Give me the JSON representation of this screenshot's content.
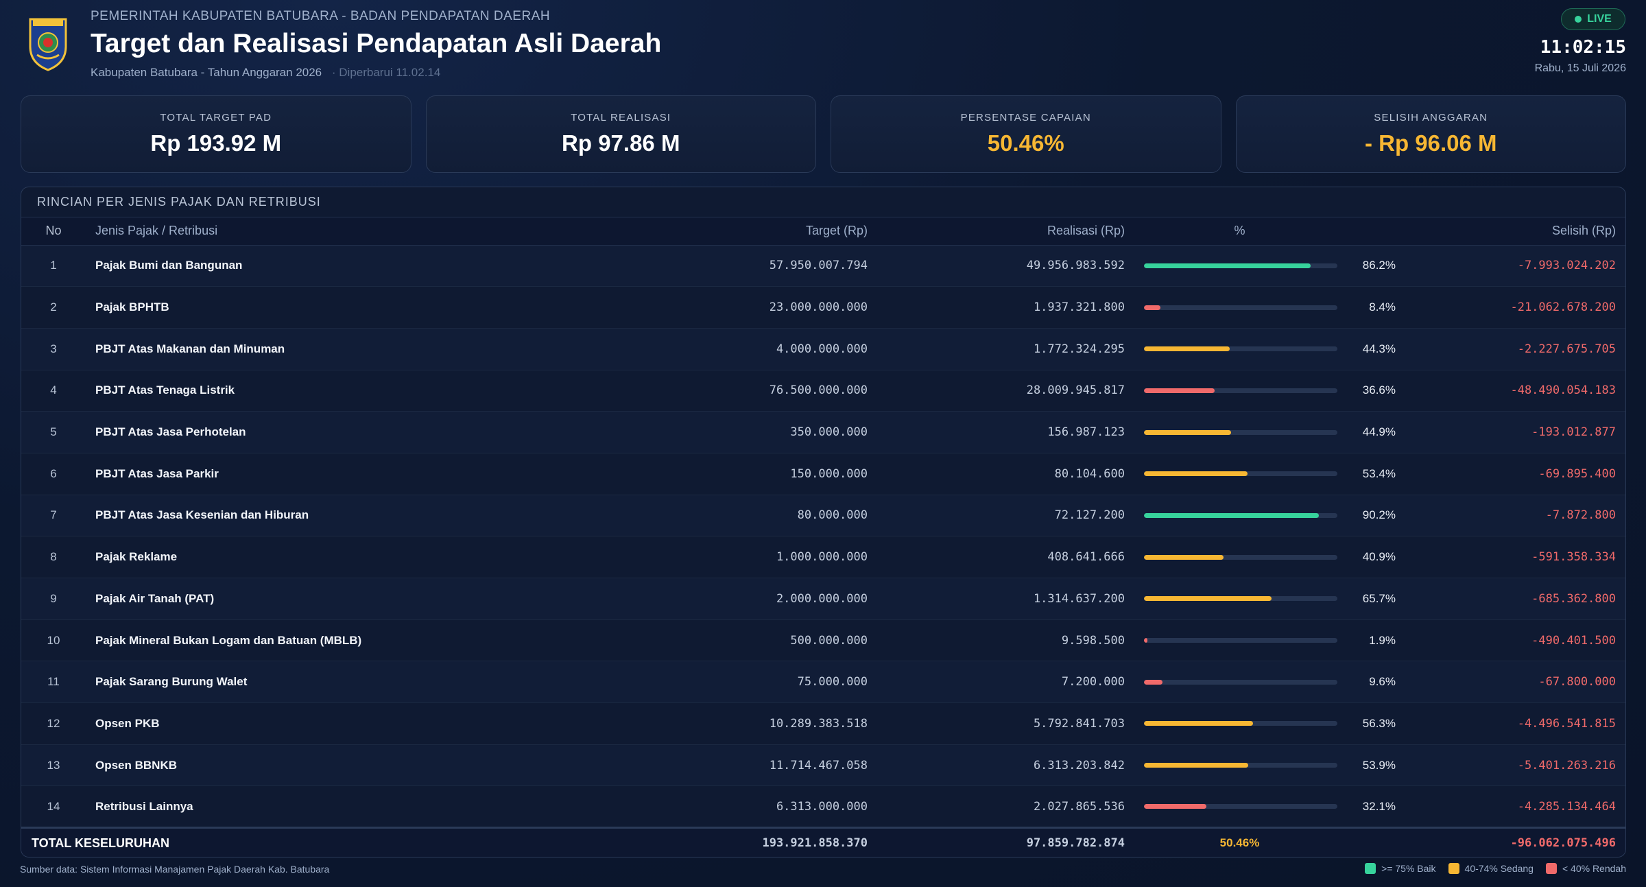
{
  "header": {
    "org": "PEMERINTAH KABUPATEN BATUBARA - BADAN PENDAPATAN DAERAH",
    "title": "Target dan Realisasi Pendapatan Asli Daerah",
    "subtitle": "Kabupaten Batubara - Tahun Anggaran 2026",
    "updated": "· Diperbarui 11.02.14",
    "live": "LIVE",
    "clock": "11:02:15",
    "date": "Rabu, 15 Juli 2026",
    "logo_icon": "regency-crest-icon"
  },
  "cards": [
    {
      "label": "TOTAL TARGET PAD",
      "value": "Rp 193.92 M"
    },
    {
      "label": "TOTAL REALISASI",
      "value": "Rp 97.86 M"
    },
    {
      "label": "PERSENTASE CAPAIAN",
      "value": "50.46%"
    },
    {
      "label": "SELISIH ANGGARAN",
      "value": "- Rp 96.06 M"
    }
  ],
  "table": {
    "title": "RINCIAN PER JENIS PAJAK DAN RETRIBUSI",
    "headers": {
      "no": "No",
      "name": "Jenis Pajak / Retribusi",
      "target": "Target (Rp)",
      "real": "Realisasi (Rp)",
      "pct": "%",
      "sel": "Selisih (Rp)"
    },
    "rows": [
      {
        "no": "1",
        "name": "Pajak Bumi dan Bangunan",
        "target": "57.950.007.794",
        "real": "49.956.983.592",
        "pct": 86.2,
        "pct_label": "86.2%",
        "sel": "-7.993.024.202"
      },
      {
        "no": "2",
        "name": "Pajak BPHTB",
        "target": "23.000.000.000",
        "real": "1.937.321.800",
        "pct": 8.4,
        "pct_label": "8.4%",
        "sel": "-21.062.678.200"
      },
      {
        "no": "3",
        "name": "PBJT Atas Makanan dan Minuman",
        "target": "4.000.000.000",
        "real": "1.772.324.295",
        "pct": 44.3,
        "pct_label": "44.3%",
        "sel": "-2.227.675.705"
      },
      {
        "no": "4",
        "name": "PBJT Atas Tenaga Listrik",
        "target": "76.500.000.000",
        "real": "28.009.945.817",
        "pct": 36.6,
        "pct_label": "36.6%",
        "sel": "-48.490.054.183"
      },
      {
        "no": "5",
        "name": "PBJT Atas Jasa Perhotelan",
        "target": "350.000.000",
        "real": "156.987.123",
        "pct": 44.9,
        "pct_label": "44.9%",
        "sel": "-193.012.877"
      },
      {
        "no": "6",
        "name": "PBJT Atas Jasa Parkir",
        "target": "150.000.000",
        "real": "80.104.600",
        "pct": 53.4,
        "pct_label": "53.4%",
        "sel": "-69.895.400"
      },
      {
        "no": "7",
        "name": "PBJT Atas Jasa Kesenian dan Hiburan",
        "target": "80.000.000",
        "real": "72.127.200",
        "pct": 90.2,
        "pct_label": "90.2%",
        "sel": "-7.872.800"
      },
      {
        "no": "8",
        "name": "Pajak Reklame",
        "target": "1.000.000.000",
        "real": "408.641.666",
        "pct": 40.9,
        "pct_label": "40.9%",
        "sel": "-591.358.334"
      },
      {
        "no": "9",
        "name": "Pajak Air Tanah (PAT)",
        "target": "2.000.000.000",
        "real": "1.314.637.200",
        "pct": 65.7,
        "pct_label": "65.7%",
        "sel": "-685.362.800"
      },
      {
        "no": "10",
        "name": "Pajak Mineral Bukan Logam dan Batuan (MBLB)",
        "target": "500.000.000",
        "real": "9.598.500",
        "pct": 1.9,
        "pct_label": "1.9%",
        "sel": "-490.401.500"
      },
      {
        "no": "11",
        "name": "Pajak Sarang Burung Walet",
        "target": "75.000.000",
        "real": "7.200.000",
        "pct": 9.6,
        "pct_label": "9.6%",
        "sel": "-67.800.000"
      },
      {
        "no": "12",
        "name": "Opsen PKB",
        "target": "10.289.383.518",
        "real": "5.792.841.703",
        "pct": 56.3,
        "pct_label": "56.3%",
        "sel": "-4.496.541.815"
      },
      {
        "no": "13",
        "name": "Opsen BBNKB",
        "target": "11.714.467.058",
        "real": "6.313.203.842",
        "pct": 53.9,
        "pct_label": "53.9%",
        "sel": "-5.401.263.216"
      },
      {
        "no": "14",
        "name": "Retribusi Lainnya",
        "target": "6.313.000.000",
        "real": "2.027.865.536",
        "pct": 32.1,
        "pct_label": "32.1%",
        "sel": "-4.285.134.464"
      }
    ],
    "total": {
      "label": "TOTAL KESELURUHAN",
      "target": "193.921.858.370",
      "real": "97.859.782.874",
      "pct": "50.46%",
      "sel": "-96.062.075.496"
    }
  },
  "footer": {
    "source": "Sumber data: Sistem Informasi Manajamen Pajak Daerah Kab. Batubara",
    "legend": [
      {
        "label": ">= 75% Baik",
        "color": "#37d39c"
      },
      {
        "label": "40-74% Sedang",
        "color": "#f7b733"
      },
      {
        "label": "< 40% Rendah",
        "color": "#f06a6a"
      }
    ]
  },
  "colors": {
    "good": "#37d39c",
    "medium": "#f7b733",
    "low": "#f06a6a"
  }
}
